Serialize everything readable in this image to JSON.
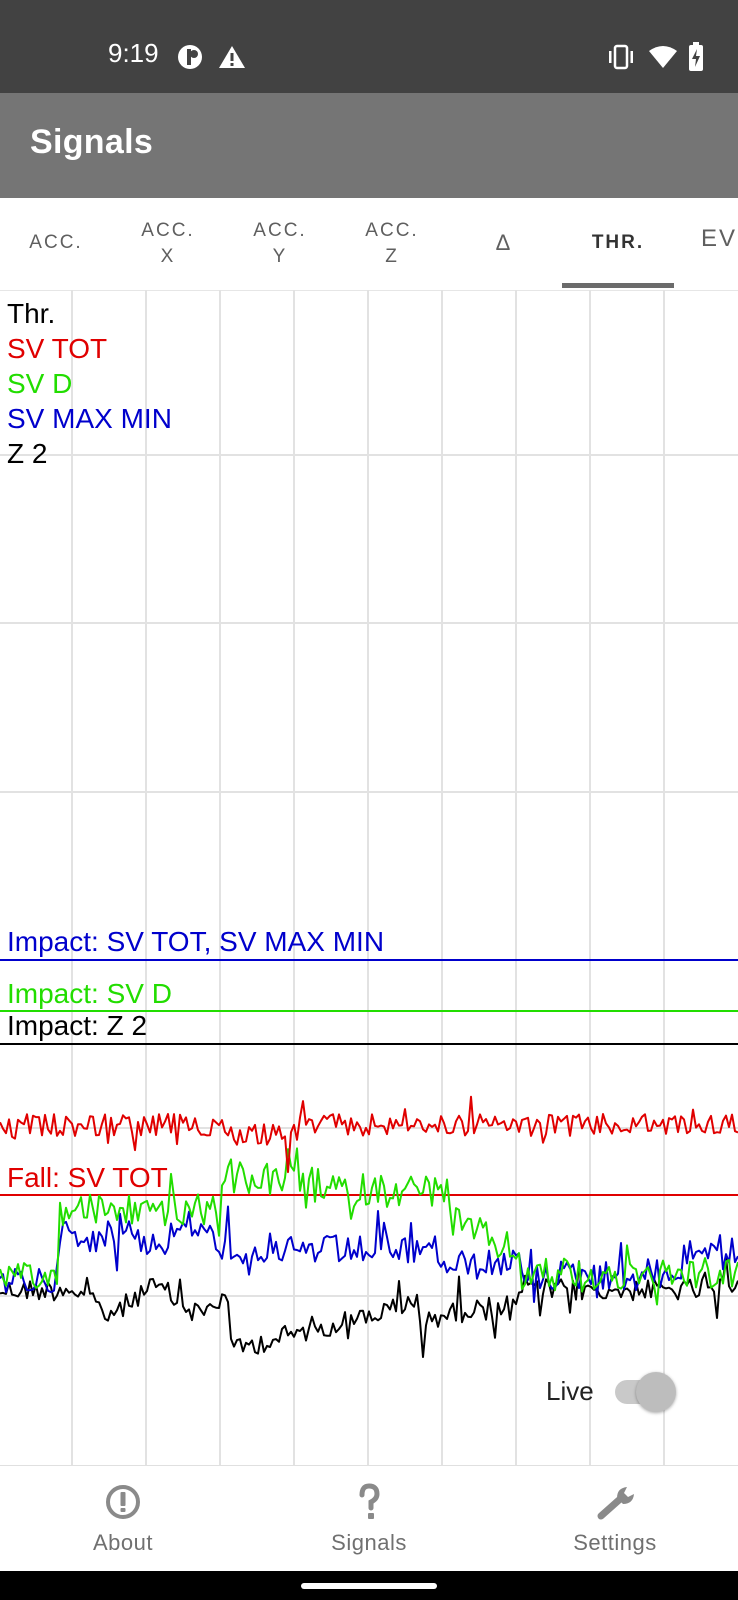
{
  "status_bar": {
    "time": "9:19",
    "left_icons": [
      "circle-split-icon",
      "warning-icon"
    ],
    "right_icons": [
      "vibrate-icon",
      "wifi-icon",
      "battery-charging-icon"
    ]
  },
  "app_bar": {
    "title": "Signals",
    "background": "#757575"
  },
  "tabs": [
    {
      "line1": "ACC.",
      "line2": ""
    },
    {
      "line1": "ACC.",
      "line2": "X"
    },
    {
      "line1": "ACC.",
      "line2": "Y"
    },
    {
      "line1": "ACC.",
      "line2": "Z"
    },
    {
      "line1": "Δ",
      "line2": ""
    },
    {
      "line1": "THR.",
      "line2": "",
      "active": true
    },
    {
      "line1": "EV",
      "line2": ""
    }
  ],
  "legend": [
    {
      "label": "Thr.",
      "color": "#000000"
    },
    {
      "label": "SV TOT",
      "color": "#e00000"
    },
    {
      "label": "SV D",
      "color": "#22dd00"
    },
    {
      "label": "SV MAX MIN",
      "color": "#0000cc"
    },
    {
      "label": "Z 2",
      "color": "#000000"
    }
  ],
  "thresholds": [
    {
      "label": "Impact: SV TOT, SV MAX MIN",
      "color": "#0000cc"
    },
    {
      "label": "Impact: SV D",
      "color": "#22dd00"
    },
    {
      "label": "Impact: Z 2",
      "color": "#000000"
    },
    {
      "label": "Fall: SV TOT",
      "color": "#e00000"
    }
  ],
  "live_toggle": {
    "label": "Live",
    "on": false
  },
  "bottom_nav": [
    {
      "label": "About",
      "icon": "info-icon"
    },
    {
      "label": "Signals",
      "icon": "question-icon"
    },
    {
      "label": "Settings",
      "icon": "wrench-icon"
    }
  ]
}
